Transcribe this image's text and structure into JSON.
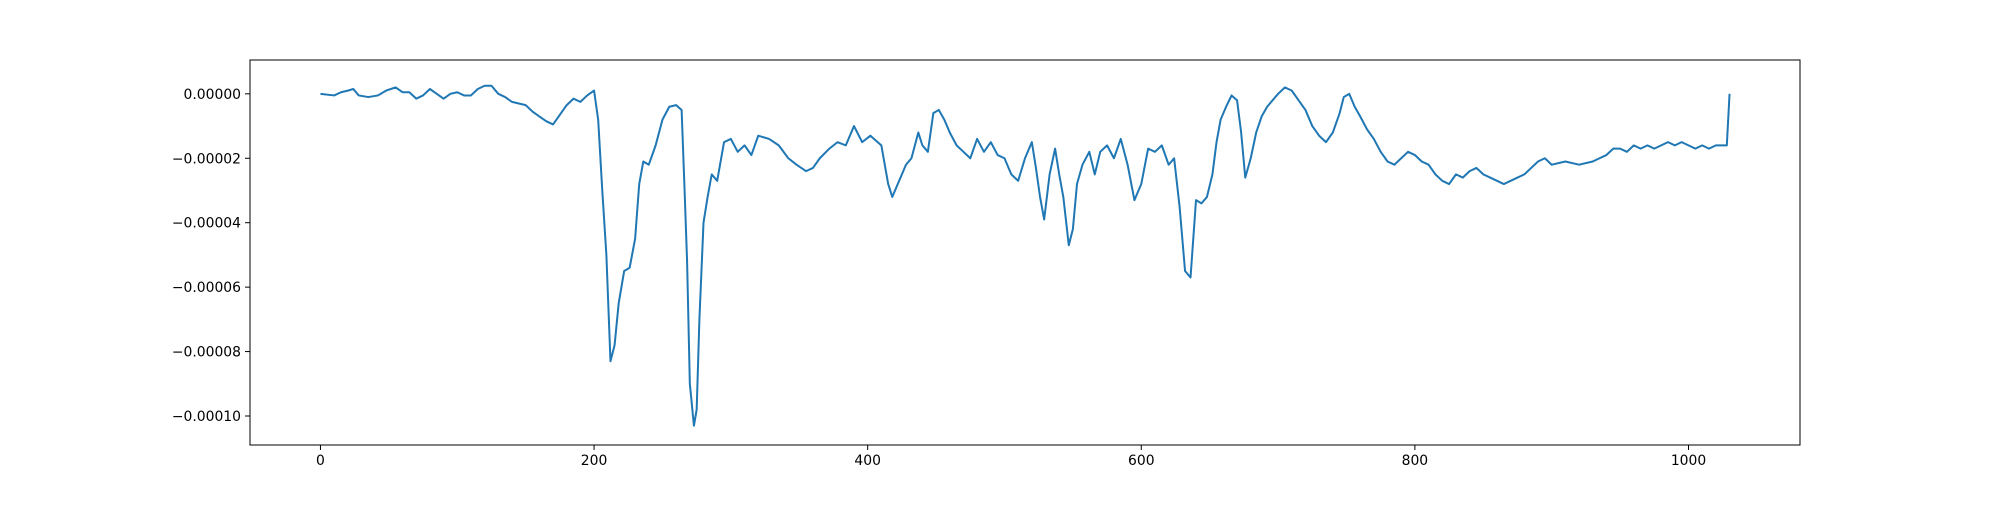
{
  "chart_data": {
    "type": "line",
    "title": "",
    "xlabel": "",
    "ylabel": "",
    "xlim": [
      -51.5,
      1081.5
    ],
    "ylim": [
      -0.000109,
      1.05e-05
    ],
    "x_ticks": [
      0,
      200,
      400,
      600,
      800,
      1000
    ],
    "y_ticks": [
      0.0,
      -2e-05,
      -4e-05,
      -6e-05,
      -8e-05,
      -0.0001
    ],
    "x_tick_labels": [
      "0",
      "200",
      "400",
      "600",
      "800",
      "1000"
    ],
    "y_tick_labels": [
      "0.00000",
      "−0.00002",
      "−0.00004",
      "−0.00006",
      "−0.00008",
      "−0.00010"
    ],
    "grid": false,
    "legend": "none",
    "series": [
      {
        "color": "#1f77b4",
        "points": [
          [
            0,
            0.0
          ],
          [
            10,
            -5e-07
          ],
          [
            15,
            5e-07
          ],
          [
            20,
            1e-06
          ],
          [
            24,
            1.5e-06
          ],
          [
            28,
            -5e-07
          ],
          [
            35,
            -1e-06
          ],
          [
            42,
            -5e-07
          ],
          [
            48,
            1e-06
          ],
          [
            55,
            2e-06
          ],
          [
            60,
            5e-07
          ],
          [
            65,
            5e-07
          ],
          [
            70,
            -1.5e-06
          ],
          [
            75,
            -5e-07
          ],
          [
            80,
            1.5e-06
          ],
          [
            85,
            0.0
          ],
          [
            90,
            -1.5e-06
          ],
          [
            95,
            0.0
          ],
          [
            100,
            5e-07
          ],
          [
            105,
            -5e-07
          ],
          [
            110,
            -5e-07
          ],
          [
            115,
            1.5e-06
          ],
          [
            120,
            2.5e-06
          ],
          [
            125,
            2.5e-06
          ],
          [
            130,
            0.0
          ],
          [
            135,
            -1e-06
          ],
          [
            140,
            -2.5e-06
          ],
          [
            145,
            -3e-06
          ],
          [
            150,
            -3.5e-06
          ],
          [
            155,
            -5.5e-06
          ],
          [
            160,
            -7e-06
          ],
          [
            165,
            -8.5e-06
          ],
          [
            170,
            -9.5e-06
          ],
          [
            175,
            -6.5e-06
          ],
          [
            180,
            -3.5e-06
          ],
          [
            185,
            -1.5e-06
          ],
          [
            190,
            -2.5e-06
          ],
          [
            195,
            -5e-07
          ],
          [
            200,
            1e-06
          ],
          [
            203,
            -8e-06
          ],
          [
            206,
            -3e-05
          ],
          [
            209,
            -5e-05
          ],
          [
            212,
            -8.3e-05
          ],
          [
            215,
            -7.8e-05
          ],
          [
            218,
            -6.5e-05
          ],
          [
            222,
            -5.5e-05
          ],
          [
            226,
            -5.4e-05
          ],
          [
            230,
            -4.5e-05
          ],
          [
            233,
            -2.8e-05
          ],
          [
            236,
            -2.1e-05
          ],
          [
            240,
            -2.2e-05
          ],
          [
            245,
            -1.6e-05
          ],
          [
            250,
            -8e-06
          ],
          [
            255,
            -4e-06
          ],
          [
            260,
            -3.5e-06
          ],
          [
            264,
            -5e-06
          ],
          [
            266,
            -2.8e-05
          ],
          [
            268,
            -5.2e-05
          ],
          [
            270,
            -9e-05
          ],
          [
            273,
            -0.000103
          ],
          [
            275,
            -9.8e-05
          ],
          [
            277,
            -7e-05
          ],
          [
            280,
            -4e-05
          ],
          [
            283,
            -3.2e-05
          ],
          [
            286,
            -2.5e-05
          ],
          [
            290,
            -2.7e-05
          ],
          [
            295,
            -1.5e-05
          ],
          [
            300,
            -1.4e-05
          ],
          [
            305,
            -1.8e-05
          ],
          [
            310,
            -1.6e-05
          ],
          [
            315,
            -1.9e-05
          ],
          [
            320,
            -1.3e-05
          ],
          [
            328,
            -1.4e-05
          ],
          [
            335,
            -1.6e-05
          ],
          [
            342,
            -2e-05
          ],
          [
            348,
            -2.2e-05
          ],
          [
            355,
            -2.4e-05
          ],
          [
            360,
            -2.3e-05
          ],
          [
            365,
            -2e-05
          ],
          [
            372,
            -1.7e-05
          ],
          [
            378,
            -1.5e-05
          ],
          [
            384,
            -1.6e-05
          ],
          [
            390,
            -1e-05
          ],
          [
            396,
            -1.5e-05
          ],
          [
            402,
            -1.3e-05
          ],
          [
            410,
            -1.6e-05
          ],
          [
            415,
            -2.8e-05
          ],
          [
            418,
            -3.2e-05
          ],
          [
            422,
            -2.8e-05
          ],
          [
            428,
            -2.2e-05
          ],
          [
            432,
            -2e-05
          ],
          [
            437,
            -1.2e-05
          ],
          [
            440,
            -1.6e-05
          ],
          [
            444,
            -1.8e-05
          ],
          [
            448,
            -6e-06
          ],
          [
            452,
            -5e-06
          ],
          [
            456,
            -8e-06
          ],
          [
            460,
            -1.2e-05
          ],
          [
            465,
            -1.6e-05
          ],
          [
            470,
            -1.8e-05
          ],
          [
            475,
            -2e-05
          ],
          [
            480,
            -1.4e-05
          ],
          [
            485,
            -1.8e-05
          ],
          [
            490,
            -1.5e-05
          ],
          [
            495,
            -1.9e-05
          ],
          [
            500,
            -2e-05
          ],
          [
            505,
            -2.5e-05
          ],
          [
            510,
            -2.7e-05
          ],
          [
            515,
            -2e-05
          ],
          [
            520,
            -1.5e-05
          ],
          [
            523,
            -2.3e-05
          ],
          [
            526,
            -3.2e-05
          ],
          [
            529,
            -3.9e-05
          ],
          [
            533,
            -2.5e-05
          ],
          [
            537,
            -1.7e-05
          ],
          [
            540,
            -2.5e-05
          ],
          [
            543,
            -3.2e-05
          ],
          [
            547,
            -4.7e-05
          ],
          [
            550,
            -4.2e-05
          ],
          [
            553,
            -2.8e-05
          ],
          [
            557,
            -2.2e-05
          ],
          [
            562,
            -1.8e-05
          ],
          [
            566,
            -2.5e-05
          ],
          [
            570,
            -1.8e-05
          ],
          [
            575,
            -1.6e-05
          ],
          [
            580,
            -2e-05
          ],
          [
            585,
            -1.4e-05
          ],
          [
            590,
            -2.2e-05
          ],
          [
            595,
            -3.3e-05
          ],
          [
            600,
            -2.8e-05
          ],
          [
            605,
            -1.7e-05
          ],
          [
            610,
            -1.8e-05
          ],
          [
            615,
            -1.6e-05
          ],
          [
            620,
            -2.2e-05
          ],
          [
            624,
            -2e-05
          ],
          [
            628,
            -3.5e-05
          ],
          [
            632,
            -5.5e-05
          ],
          [
            636,
            -5.7e-05
          ],
          [
            640,
            -3.3e-05
          ],
          [
            644,
            -3.4e-05
          ],
          [
            648,
            -3.2e-05
          ],
          [
            652,
            -2.5e-05
          ],
          [
            655,
            -1.5e-05
          ],
          [
            658,
            -8e-06
          ],
          [
            662,
            -4e-06
          ],
          [
            666,
            -5e-07
          ],
          [
            670,
            -2e-06
          ],
          [
            673,
            -1.2e-05
          ],
          [
            676,
            -2.6e-05
          ],
          [
            680,
            -2e-05
          ],
          [
            684,
            -1.2e-05
          ],
          [
            688,
            -7e-06
          ],
          [
            692,
            -4e-06
          ],
          [
            696,
            -2e-06
          ],
          [
            700,
            0.0
          ],
          [
            705,
            2e-06
          ],
          [
            710,
            1e-06
          ],
          [
            715,
            -2e-06
          ],
          [
            720,
            -5e-06
          ],
          [
            725,
            -1e-05
          ],
          [
            730,
            -1.3e-05
          ],
          [
            735,
            -1.5e-05
          ],
          [
            740,
            -1.2e-05
          ],
          [
            745,
            -6e-06
          ],
          [
            748,
            -1e-06
          ],
          [
            752,
            0.0
          ],
          [
            756,
            -4e-06
          ],
          [
            760,
            -7e-06
          ],
          [
            765,
            -1.1e-05
          ],
          [
            770,
            -1.4e-05
          ],
          [
            775,
            -1.8e-05
          ],
          [
            780,
            -2.1e-05
          ],
          [
            785,
            -2.2e-05
          ],
          [
            790,
            -2e-05
          ],
          [
            795,
            -1.8e-05
          ],
          [
            800,
            -1.9e-05
          ],
          [
            805,
            -2.1e-05
          ],
          [
            810,
            -2.2e-05
          ],
          [
            815,
            -2.5e-05
          ],
          [
            820,
            -2.7e-05
          ],
          [
            825,
            -2.8e-05
          ],
          [
            830,
            -2.5e-05
          ],
          [
            835,
            -2.6e-05
          ],
          [
            840,
            -2.4e-05
          ],
          [
            845,
            -2.3e-05
          ],
          [
            850,
            -2.5e-05
          ],
          [
            855,
            -2.6e-05
          ],
          [
            860,
            -2.7e-05
          ],
          [
            865,
            -2.8e-05
          ],
          [
            870,
            -2.7e-05
          ],
          [
            875,
            -2.6e-05
          ],
          [
            880,
            -2.5e-05
          ],
          [
            885,
            -2.3e-05
          ],
          [
            890,
            -2.1e-05
          ],
          [
            895,
            -2e-05
          ],
          [
            900,
            -2.2e-05
          ],
          [
            910,
            -2.1e-05
          ],
          [
            920,
            -2.2e-05
          ],
          [
            930,
            -2.1e-05
          ],
          [
            935,
            -2e-05
          ],
          [
            940,
            -1.9e-05
          ],
          [
            945,
            -1.7e-05
          ],
          [
            950,
            -1.7e-05
          ],
          [
            955,
            -1.8e-05
          ],
          [
            960,
            -1.6e-05
          ],
          [
            965,
            -1.7e-05
          ],
          [
            970,
            -1.6e-05
          ],
          [
            975,
            -1.7e-05
          ],
          [
            980,
            -1.6e-05
          ],
          [
            985,
            -1.5e-05
          ],
          [
            990,
            -1.6e-05
          ],
          [
            995,
            -1.5e-05
          ],
          [
            1000,
            -1.6e-05
          ],
          [
            1005,
            -1.7e-05
          ],
          [
            1010,
            -1.6e-05
          ],
          [
            1015,
            -1.7e-05
          ],
          [
            1020,
            -1.6e-05
          ],
          [
            1025,
            -1.6e-05
          ],
          [
            1028,
            -1.6e-05
          ],
          [
            1030,
            0.0
          ]
        ]
      }
    ]
  }
}
